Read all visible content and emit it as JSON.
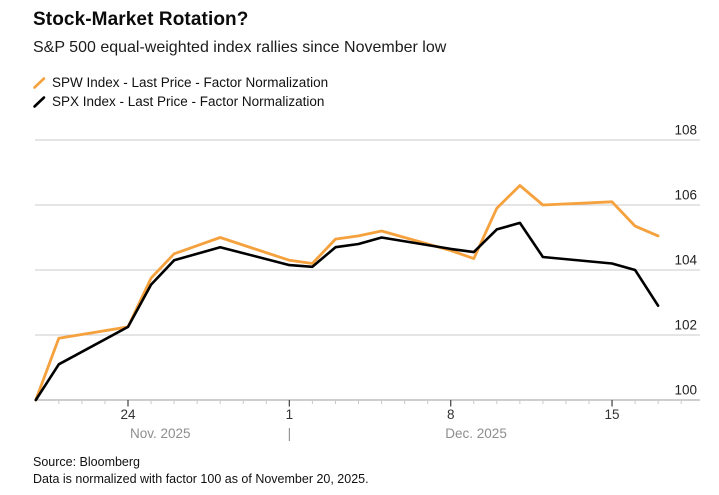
{
  "header": {
    "title": "Stock-Market Rotation?",
    "subtitle": "S&P 500 equal-weighted index rallies since November low"
  },
  "legend": [
    {
      "label": "SPW Index - Last Price - Factor Normalization",
      "color": "#F5A13D"
    },
    {
      "label": "SPX Index - Last Price - Factor Normalization",
      "color": "#000000"
    }
  ],
  "footer": {
    "source": "Source: Bloomberg",
    "note": "Data is normalized with factor 100 as of November 20, 2025."
  },
  "colors": {
    "spw_line": "#F5A13D",
    "spx_line": "#000000",
    "gridline": "#cbcbcb",
    "axis_line": "#9e9e9e",
    "minor_tick": "#c9c9c9",
    "major_tick": "#4d4d4d",
    "y_label": "#1f1f1f",
    "day_label": "#333333",
    "month_label": "#8e8e8e",
    "background": "#ffffff"
  },
  "chart_data": {
    "type": "line",
    "title": "Stock-Market Rotation?",
    "subtitle": "S&P 500 equal-weighted index rallies since November low",
    "xlabel": "",
    "ylabel": "",
    "normalization_note": "Data is normalized with factor 100 as of November 20, 2025.",
    "dates": [
      "Nov 20",
      "Nov 21",
      "Nov 24",
      "Nov 25",
      "Nov 26",
      "Nov 28",
      "Dec 1",
      "Dec 2",
      "Dec 3",
      "Dec 4",
      "Dec 5",
      "Dec 8",
      "Dec 9",
      "Dec 10",
      "Dec 11",
      "Dec 12",
      "Dec 15",
      "Dec 16",
      "Dec 17"
    ],
    "days_since_nov20": [
      0,
      1,
      4,
      5,
      6,
      8,
      11,
      12,
      13,
      14,
      15,
      18,
      19,
      20,
      21,
      22,
      25,
      26,
      27
    ],
    "series": [
      {
        "name": "SPW Index - Last Price - Factor Normalization",
        "color": "#F5A13D",
        "values": [
          100.0,
          101.9,
          102.25,
          103.75,
          104.5,
          105.0,
          104.3,
          104.2,
          104.95,
          105.05,
          105.2,
          104.6,
          104.35,
          105.9,
          106.6,
          106.0,
          106.1,
          105.35,
          105.05
        ]
      },
      {
        "name": "SPX Index - Last Price - Factor Normalization",
        "color": "#000000",
        "values": [
          100.0,
          101.1,
          102.25,
          103.55,
          104.3,
          104.7,
          104.15,
          104.1,
          104.7,
          104.8,
          105.0,
          104.65,
          104.55,
          105.25,
          105.45,
          104.4,
          104.2,
          104.0,
          102.9
        ]
      }
    ],
    "y_axis": {
      "side": "right",
      "ticks": [
        100,
        102,
        104,
        106,
        108
      ],
      "ylim": [
        100,
        108
      ],
      "grid": true
    },
    "x_axis": {
      "labeled_ticks": [
        {
          "day": 4,
          "label": "24"
        },
        {
          "day": 11,
          "label": "1"
        },
        {
          "day": 18,
          "label": "8"
        },
        {
          "day": 25,
          "label": "15"
        }
      ],
      "minor_tick_day_start": 1,
      "minor_tick_day_end": 28,
      "month_labels": [
        {
          "label": "Nov. 2025",
          "center_day": 5.4
        },
        {
          "label": "Dec. 2025",
          "center_day": 19.1
        }
      ],
      "month_divider": {
        "glyph": "|",
        "day": 11
      }
    },
    "legend_position": "top-left"
  }
}
